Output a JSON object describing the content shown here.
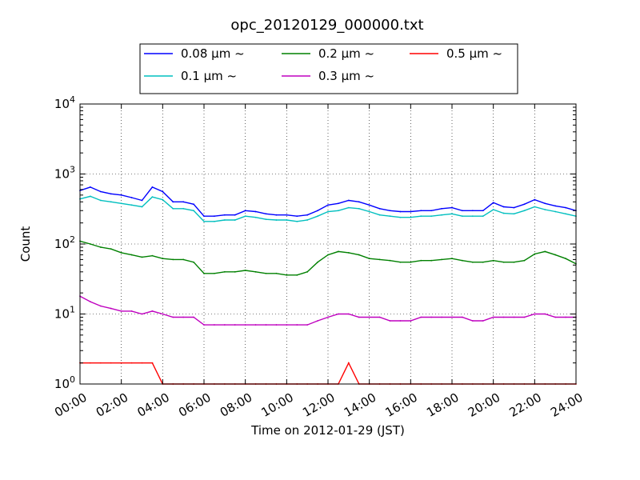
{
  "chart_data": {
    "type": "line",
    "title": "opc_20120129_000000.txt",
    "xlabel": "Time on 2012-01-29 (JST)",
    "ylabel": "Count",
    "x_tick_labels": [
      "00:00",
      "02:00",
      "04:00",
      "06:00",
      "08:00",
      "10:00",
      "12:00",
      "14:00",
      "16:00",
      "18:00",
      "20:00",
      "22:00",
      "24:00"
    ],
    "xlim": [
      "00:00",
      "24:00"
    ],
    "y_scale": "log",
    "ylim": [
      1,
      10000
    ],
    "y_tick_labels": [
      {
        "base": "10",
        "exp": "0"
      },
      {
        "base": "10",
        "exp": "1"
      },
      {
        "base": "10",
        "exp": "2"
      },
      {
        "base": "10",
        "exp": "3"
      },
      {
        "base": "10",
        "exp": "4"
      }
    ],
    "grid": true,
    "legend_position": "top-center",
    "series": [
      {
        "name": "0.08 μm ~",
        "color": "#0000ff",
        "x": [
          "00:00",
          "00:30",
          "01:00",
          "01:30",
          "02:00",
          "02:30",
          "03:00",
          "03:30",
          "04:00",
          "04:30",
          "05:00",
          "05:30",
          "06:00",
          "06:30",
          "07:00",
          "07:30",
          "08:00",
          "08:30",
          "09:00",
          "09:30",
          "10:00",
          "10:30",
          "11:00",
          "11:30",
          "12:00",
          "12:30",
          "13:00",
          "13:30",
          "14:00",
          "14:30",
          "15:00",
          "15:30",
          "16:00",
          "16:30",
          "17:00",
          "17:30",
          "18:00",
          "18:30",
          "19:00",
          "19:30",
          "20:00",
          "20:30",
          "21:00",
          "21:30",
          "22:00",
          "22:30",
          "23:00",
          "23:30",
          "24:00"
        ],
        "values": [
          580,
          650,
          560,
          520,
          500,
          460,
          420,
          650,
          560,
          400,
          400,
          370,
          250,
          250,
          260,
          260,
          300,
          290,
          270,
          260,
          260,
          250,
          260,
          300,
          360,
          380,
          420,
          400,
          360,
          320,
          300,
          290,
          290,
          300,
          300,
          320,
          330,
          300,
          300,
          300,
          390,
          340,
          330,
          370,
          430,
          380,
          350,
          330,
          300
        ]
      },
      {
        "name": "0.1 μm ~",
        "color": "#00bfbf",
        "x": [
          "00:00",
          "00:30",
          "01:00",
          "01:30",
          "02:00",
          "02:30",
          "03:00",
          "03:30",
          "04:00",
          "04:30",
          "05:00",
          "05:30",
          "06:00",
          "06:30",
          "07:00",
          "07:30",
          "08:00",
          "08:30",
          "09:00",
          "09:30",
          "10:00",
          "10:30",
          "11:00",
          "11:30",
          "12:00",
          "12:30",
          "13:00",
          "13:30",
          "14:00",
          "14:30",
          "15:00",
          "15:30",
          "16:00",
          "16:30",
          "17:00",
          "17:30",
          "18:00",
          "18:30",
          "19:00",
          "19:30",
          "20:00",
          "20:30",
          "21:00",
          "21:30",
          "22:00",
          "22:30",
          "23:00",
          "23:30",
          "24:00"
        ],
        "values": [
          440,
          480,
          420,
          400,
          380,
          360,
          340,
          470,
          430,
          320,
          320,
          300,
          210,
          210,
          220,
          220,
          250,
          240,
          225,
          220,
          220,
          210,
          220,
          250,
          290,
          300,
          330,
          320,
          290,
          260,
          250,
          240,
          240,
          250,
          250,
          260,
          270,
          250,
          250,
          250,
          310,
          275,
          270,
          300,
          340,
          310,
          290,
          270,
          250
        ]
      },
      {
        "name": "0.2 μm ~",
        "color": "#008000",
        "x": [
          "00:00",
          "00:30",
          "01:00",
          "01:30",
          "02:00",
          "02:30",
          "03:00",
          "03:30",
          "04:00",
          "04:30",
          "05:00",
          "05:30",
          "06:00",
          "06:30",
          "07:00",
          "07:30",
          "08:00",
          "08:30",
          "09:00",
          "09:30",
          "10:00",
          "10:30",
          "11:00",
          "11:30",
          "12:00",
          "12:30",
          "13:00",
          "13:30",
          "14:00",
          "14:30",
          "15:00",
          "15:30",
          "16:00",
          "16:30",
          "17:00",
          "17:30",
          "18:00",
          "18:30",
          "19:00",
          "19:30",
          "20:00",
          "20:30",
          "21:00",
          "21:30",
          "22:00",
          "22:30",
          "23:00",
          "23:30",
          "24:00"
        ],
        "values": [
          110,
          100,
          90,
          85,
          75,
          70,
          65,
          68,
          62,
          60,
          60,
          55,
          38,
          38,
          40,
          40,
          42,
          40,
          38,
          38,
          36,
          36,
          40,
          55,
          70,
          78,
          75,
          70,
          62,
          60,
          58,
          55,
          55,
          58,
          58,
          60,
          62,
          58,
          55,
          55,
          58,
          55,
          55,
          58,
          72,
          78,
          70,
          62,
          52
        ]
      },
      {
        "name": "0.3 μm ~",
        "color": "#bf00bf",
        "x": [
          "00:00",
          "00:30",
          "01:00",
          "01:30",
          "02:00",
          "02:30",
          "03:00",
          "03:30",
          "04:00",
          "04:30",
          "05:00",
          "05:30",
          "06:00",
          "06:30",
          "07:00",
          "07:30",
          "08:00",
          "08:30",
          "09:00",
          "09:30",
          "10:00",
          "10:30",
          "11:00",
          "11:30",
          "12:00",
          "12:30",
          "13:00",
          "13:30",
          "14:00",
          "14:30",
          "15:00",
          "15:30",
          "16:00",
          "16:30",
          "17:00",
          "17:30",
          "18:00",
          "18:30",
          "19:00",
          "19:30",
          "20:00",
          "20:30",
          "21:00",
          "21:30",
          "22:00",
          "22:30",
          "23:00",
          "23:30",
          "24:00"
        ],
        "values": [
          18,
          15,
          13,
          12,
          11,
          11,
          10,
          11,
          10,
          9,
          9,
          9,
          7,
          7,
          7,
          7,
          7,
          7,
          7,
          7,
          7,
          7,
          7,
          8,
          9,
          10,
          10,
          9,
          9,
          9,
          8,
          8,
          8,
          9,
          9,
          9,
          9,
          9,
          8,
          8,
          9,
          9,
          9,
          9,
          10,
          10,
          9,
          9,
          9
        ]
      },
      {
        "name": "0.5 μm ~",
        "color": "#ff0000",
        "x": [
          "00:00",
          "00:30",
          "01:00",
          "01:30",
          "02:00",
          "02:30",
          "03:00",
          "03:30",
          "04:00",
          "04:30",
          "05:00",
          "05:30",
          "06:00",
          "06:30",
          "07:00",
          "07:30",
          "08:00",
          "08:30",
          "09:00",
          "09:30",
          "10:00",
          "10:30",
          "11:00",
          "11:30",
          "12:00",
          "12:30",
          "13:00",
          "13:30",
          "14:00",
          "14:30",
          "15:00",
          "15:30",
          "16:00",
          "16:30",
          "17:00",
          "17:30",
          "18:00",
          "18:30",
          "19:00",
          "19:30",
          "20:00",
          "20:30",
          "21:00",
          "21:30",
          "22:00",
          "22:30",
          "23:00",
          "23:30",
          "24:00"
        ],
        "values": [
          2,
          2,
          2,
          2,
          2,
          2,
          2,
          2,
          1,
          1,
          1,
          1,
          1,
          1,
          1,
          1,
          1,
          1,
          1,
          1,
          1,
          1,
          1,
          1,
          1,
          1,
          2,
          1,
          1,
          1,
          1,
          1,
          1,
          1,
          1,
          1,
          1,
          1,
          1,
          1,
          1,
          1,
          1,
          1,
          1,
          1,
          1,
          1,
          1
        ]
      }
    ]
  }
}
